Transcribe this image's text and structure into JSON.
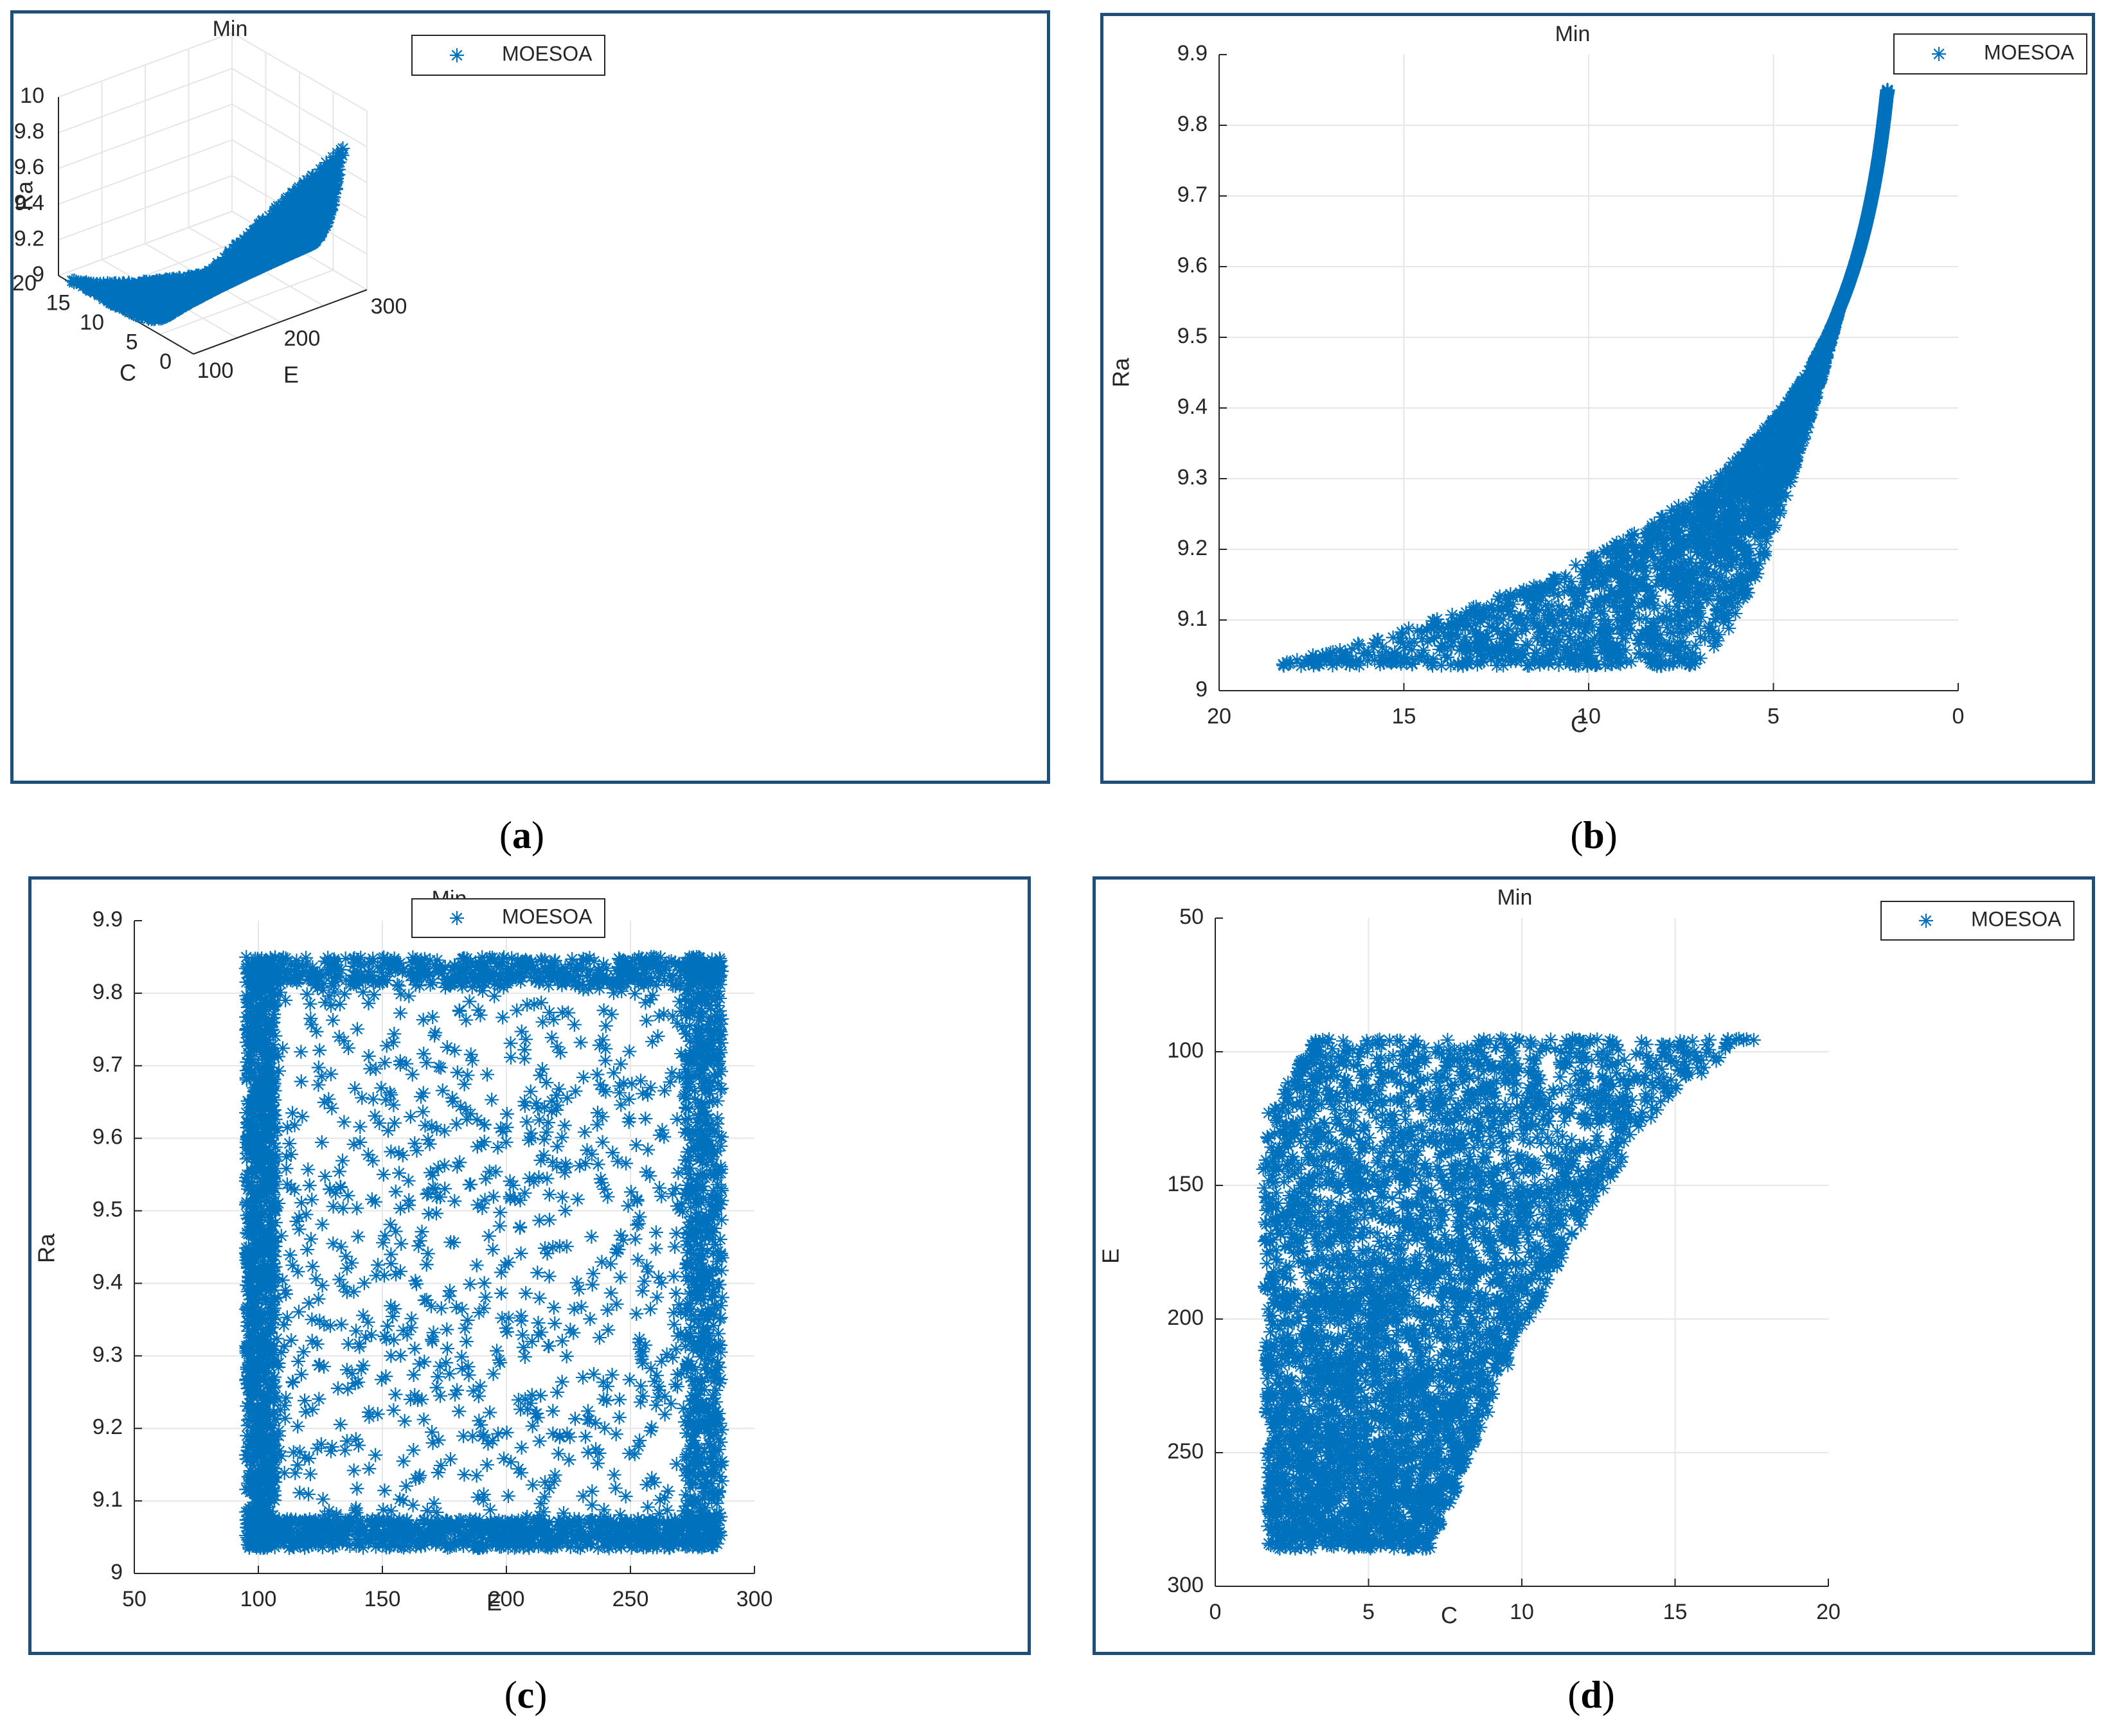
{
  "captions": {
    "a": "a",
    "b": "b",
    "c": "c",
    "d": "d"
  },
  "colors": {
    "marker": "#0072BD",
    "frame": "#1F4E79",
    "grid": "#E6E6E6",
    "axis": "#262626"
  },
  "chart_data": [
    {
      "id": "a",
      "type": "scatter",
      "projection": "3d",
      "title": "Min",
      "legend": {
        "label": "MOESOA",
        "position": "top-right"
      },
      "xlabel": "E",
      "ylabel": "C",
      "zlabel": "Ra",
      "x_ticks": [
        "100",
        "200",
        "300"
      ],
      "y_ticks": [
        "0",
        "5",
        "10",
        "15",
        "20"
      ],
      "z_ticks": [
        "9",
        "9.2",
        "9.4",
        "9.6",
        "9.8",
        "10"
      ],
      "xlim": [
        100,
        300
      ],
      "ylim": [
        0,
        20
      ],
      "zlim": [
        9,
        10
      ],
      "grid": true,
      "series": [
        {
          "name": "MOESOA",
          "marker": "asterisk",
          "description_range": {
            "E": [
              95,
              285
            ],
            "C": [
              1.5,
              18.5
            ],
            "Ra": [
              9.04,
              9.85
            ]
          }
        }
      ]
    },
    {
      "id": "b",
      "type": "scatter",
      "title": "Min",
      "legend": {
        "label": "MOESOA",
        "position": "top-right"
      },
      "xlabel": "C",
      "ylabel": "Ra",
      "x_ticks": [
        "20",
        "15",
        "10",
        "5",
        "0"
      ],
      "y_ticks": [
        "9",
        "9.1",
        "9.2",
        "9.3",
        "9.4",
        "9.5",
        "9.6",
        "9.7",
        "9.8",
        "9.9"
      ],
      "xlim": [
        20,
        0
      ],
      "ylim": [
        9,
        9.9
      ],
      "x_reversed": true,
      "grid": true,
      "series": [
        {
          "name": "MOESOA",
          "marker": "asterisk",
          "description_range": {
            "C": [
              1.5,
              18.6
            ],
            "Ra": [
              9.035,
              9.85
            ]
          }
        }
      ]
    },
    {
      "id": "c",
      "type": "scatter",
      "title": "Min",
      "legend": {
        "label": "MOESOA",
        "position": "top-right"
      },
      "xlabel": "E",
      "ylabel": "Ra",
      "x_ticks": [
        "50",
        "100",
        "150",
        "200",
        "250",
        "300"
      ],
      "y_ticks": [
        "9",
        "9.1",
        "9.2",
        "9.3",
        "9.4",
        "9.5",
        "9.6",
        "9.7",
        "9.8",
        "9.9"
      ],
      "xlim": [
        50,
        300
      ],
      "ylim": [
        9,
        9.9
      ],
      "grid": true,
      "series": [
        {
          "name": "MOESOA",
          "marker": "asterisk",
          "description_range": {
            "E": [
              95,
              287
            ],
            "Ra": [
              9.035,
              9.85
            ]
          }
        }
      ]
    },
    {
      "id": "d",
      "type": "scatter",
      "title": "Min",
      "legend": {
        "label": "MOESOA",
        "position": "top-right"
      },
      "xlabel": "C",
      "ylabel": "E",
      "x_ticks": [
        "0",
        "5",
        "10",
        "15",
        "20"
      ],
      "y_ticks": [
        "50",
        "100",
        "150",
        "200",
        "250",
        "300"
      ],
      "xlim": [
        0,
        20
      ],
      "ylim": [
        300,
        50
      ],
      "y_reversed": true,
      "grid": true,
      "series": [
        {
          "name": "MOESOA",
          "marker": "asterisk",
          "description_range": {
            "C": [
              1.3,
              18.5
            ],
            "E": [
              94,
              286
            ]
          }
        }
      ]
    }
  ]
}
